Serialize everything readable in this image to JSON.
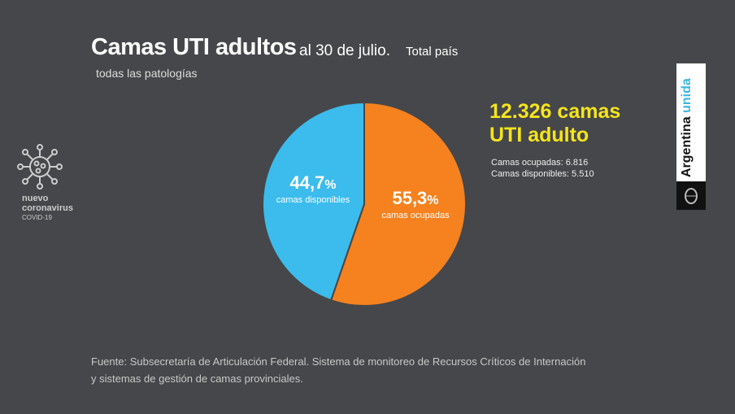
{
  "header": {
    "title": "Camas UTI adultos",
    "date": "al 30 de julio.",
    "scope": "Total país",
    "subtitle": "todas las patologías"
  },
  "summary": {
    "total_line1": "12.326 camas",
    "total_line2": "UTI adulto",
    "occupied": "Camas ocupadas: 6.816",
    "available": "Camas disponibles: 5.510"
  },
  "chart_data": {
    "type": "pie",
    "categories": [
      "camas ocupadas",
      "camas disponibles"
    ],
    "values": [
      55.3,
      44.7
    ],
    "labels": [
      "55,3",
      "44,7"
    ],
    "unit": "%",
    "colors": [
      "#f5821f",
      "#3bbcec"
    ]
  },
  "source": {
    "line1": "Fuente: Subsecretaría de Articulación Federal. Sistema de monitoreo de Recursos Críticos de Internación",
    "line2": "y sistemas de gestión de camas provinciales."
  },
  "branding": {
    "covid_line1": "nuevo",
    "covid_line2": "coronavirus",
    "covid_line3": "COVID-19",
    "logo_word1": "Argentina",
    "logo_word2": "unida",
    "icons": [
      "virus-icon",
      "coat-of-arms-icon"
    ]
  }
}
